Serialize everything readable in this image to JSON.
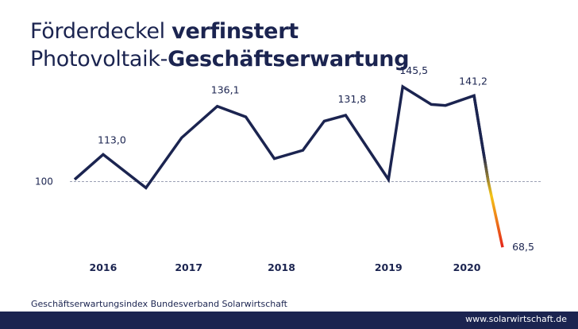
{
  "header": {
    "line1_regular": "Förderdeckel ",
    "line1_bold": "verfinstert",
    "line2_regular": "Photovoltaik-",
    "line2_bold": "Geschäftserwartung"
  },
  "footer": {
    "source": "Geschäftserwartungsindex Bundesverband Solarwirtschaft",
    "url": "www.solarwirtschaft.de"
  },
  "colors": {
    "text": "#1b2450",
    "line": "#1b2450",
    "crash_yellow": "#f5c518",
    "crash_red": "#e52b1b",
    "reference_line": "#9aa0b4"
  },
  "chart_data": {
    "type": "line",
    "title": "Förderdeckel verfinstert Photovoltaik-Geschäftserwartung",
    "xlabel": "",
    "ylabel": "",
    "x": [
      0,
      0.5,
      2,
      5,
      7.5,
      10,
      12,
      14,
      16,
      17.5,
      19,
      22,
      23,
      25,
      26,
      28,
      29,
      30
    ],
    "values": [
      101,
      104,
      113.0,
      97,
      121,
      136.1,
      131,
      111,
      115,
      129,
      131.8,
      101,
      145.5,
      137,
      136.5,
      141.2,
      100,
      68.5
    ],
    "xlim": [
      0,
      30
    ],
    "ylim": [
      64,
      152
    ],
    "reference_value": 100,
    "reference_label": "100",
    "x_tick_positions": [
      2,
      8,
      14.5,
      22,
      27.5
    ],
    "x_tick_labels": [
      "2016",
      "2017",
      "2018",
      "2019",
      "2020"
    ],
    "data_labels": [
      {
        "index": 2,
        "text": "113,0"
      },
      {
        "index": 5,
        "text": "136,1"
      },
      {
        "index": 10,
        "text": "131,8"
      },
      {
        "index": 12,
        "text": "145,5"
      },
      {
        "index": 15,
        "text": "141,2"
      },
      {
        "index": 17,
        "text": "68,5"
      }
    ],
    "grid": false,
    "legend": "none"
  }
}
